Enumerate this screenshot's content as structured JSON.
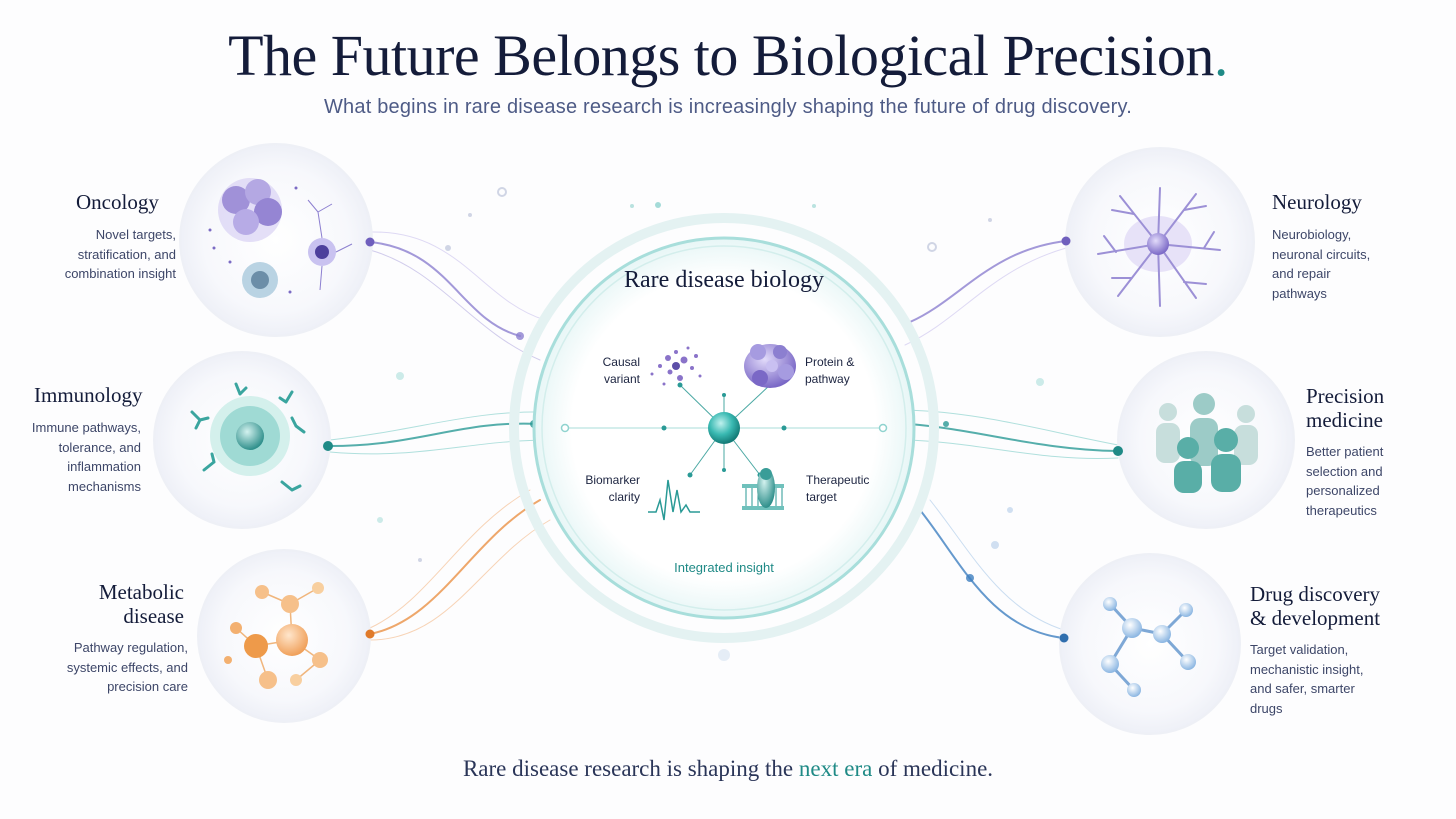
{
  "header": {
    "title": "The Future Belongs to Biological Precision",
    "title_dot": ".",
    "subtitle": "What begins in rare disease research is increasingly shaping the future of drug discovery."
  },
  "center": {
    "title": "Rare disease biology",
    "items": [
      {
        "label": "Causal variant",
        "icon": "molecule-cluster-icon"
      },
      {
        "label": "Protein & pathway",
        "icon": "protein-structure-icon"
      },
      {
        "label": "Biomarker clarity",
        "icon": "waveform-icon"
      },
      {
        "label": "Therapeutic target",
        "icon": "membrane-protein-icon"
      }
    ],
    "caption": "Integrated insight"
  },
  "left_nodes": [
    {
      "title": "Oncology",
      "description": "Novel targets, stratification, and combination insight",
      "color": "#7b6bc4",
      "icon": "tumor-cells-icon"
    },
    {
      "title": "Immunology",
      "description": "Immune pathways, tolerance, and inflammation mechanisms",
      "color": "#2a9a96",
      "icon": "immune-cell-antibody-icon"
    },
    {
      "title": "Metabolic disease",
      "description": "Pathway regulation, systemic effects, and precision care",
      "color": "#e8893a",
      "icon": "metabolic-network-icon"
    }
  ],
  "right_nodes": [
    {
      "title": "Neurology",
      "description": "Neurobiology, neuronal circuits, and repair pathways",
      "color": "#7b6bc4",
      "icon": "neuron-icon"
    },
    {
      "title": "Precision medicine",
      "description": "Better patient selection and personalized therapeutics",
      "color": "#2a9a96",
      "icon": "patient-group-icon"
    },
    {
      "title": "Drug discovery & development",
      "description": "Target validation, mechanistic insight, and safer, smarter drugs",
      "color": "#3f7fc0",
      "icon": "drug-molecule-icon"
    }
  ],
  "footer": {
    "prefix": "Rare disease research is shaping the",
    "accent": "next era",
    "suffix": "of medicine."
  },
  "colors": {
    "accent": "#1f8a86",
    "navy": "#141c3a",
    "purple": "#7b6bc4",
    "orange": "#e8893a",
    "blue": "#3f7fc0"
  }
}
